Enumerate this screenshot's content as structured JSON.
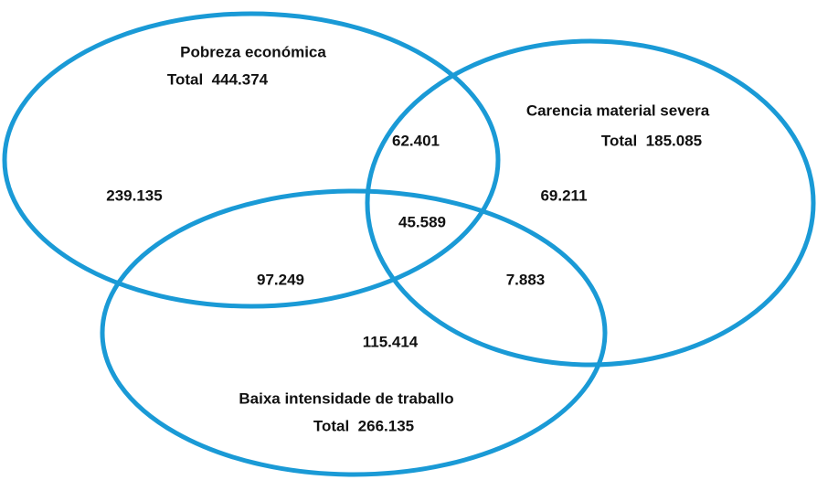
{
  "sets": [
    {
      "label": "Pobreza económica",
      "total": "Total  444.374"
    },
    {
      "label": "Carencia material severa",
      "total": "Total  185.085"
    },
    {
      "label": "Baixa intensidade de traballo",
      "total": "Total  266.135"
    }
  ],
  "regions": {
    "pobreza_only": "239.135",
    "pobreza_carencia": "62.401",
    "carencia_only": "69.211",
    "all_three": "45.589",
    "pobreza_baixa": "97.249",
    "carencia_baixa": "7.883",
    "baixa_only": "115.414"
  }
}
